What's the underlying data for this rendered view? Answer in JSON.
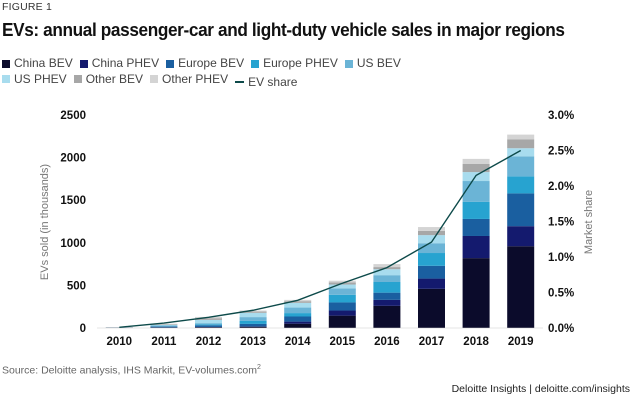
{
  "figure_label": "FIGURE 1",
  "title": "EVs: annual passenger-car and light-duty vehicle sales in major regions",
  "source": "Source: Deloitte analysis, IHS Markit, EV-volumes.com",
  "source_footnote": "2",
  "credit": "Deloitte Insights | deloitte.com/insights",
  "legend": [
    {
      "label": "China BEV",
      "color": "#0b0b2b",
      "kind": "box"
    },
    {
      "label": "China PHEV",
      "color": "#141a6e",
      "kind": "box"
    },
    {
      "label": "Europe BEV",
      "color": "#1a5fa0",
      "kind": "box"
    },
    {
      "label": "Europe PHEV",
      "color": "#27a3d0",
      "kind": "box"
    },
    {
      "label": "US BEV",
      "color": "#6bb4d6",
      "kind": "box"
    },
    {
      "label": "US PHEV",
      "color": "#a8dcee",
      "kind": "box"
    },
    {
      "label": "Other BEV",
      "color": "#a7a7a7",
      "kind": "box"
    },
    {
      "label": "Other PHEV",
      "color": "#d4d4d4",
      "kind": "box"
    },
    {
      "label": "EV share",
      "color": "#0d4a4a",
      "kind": "line"
    }
  ],
  "chart_data": {
    "type": "bar",
    "stacked": true,
    "title": "EVs: annual passenger-car and light-duty vehicle sales in major regions",
    "xlabel": "",
    "ylabel": "EVs sold (in thousands)",
    "y2label": "Market share",
    "ylim": [
      0,
      2500
    ],
    "y2lim": [
      0,
      3.0
    ],
    "yticks": [
      "0",
      "500",
      "1000",
      "1500",
      "2000",
      "2500"
    ],
    "y2ticks": [
      "0.0%",
      "0.5%",
      "1.0%",
      "1.5%",
      "2.0%",
      "2.5%",
      "3.0%"
    ],
    "grid": false,
    "legend_position": "top-left",
    "categories": [
      "2010",
      "2011",
      "2012",
      "2013",
      "2014",
      "2015",
      "2016",
      "2017",
      "2018",
      "2019"
    ],
    "series": [
      {
        "name": "China BEV",
        "color": "#0b0b2b",
        "values": [
          2,
          6,
          10,
          15,
          50,
          145,
          260,
          460,
          820,
          960
        ]
      },
      {
        "name": "China PHEV",
        "color": "#141a6e",
        "values": [
          0,
          1,
          2,
          3,
          25,
          60,
          70,
          120,
          260,
          235
        ]
      },
      {
        "name": "Europe BEV",
        "color": "#1a5fa0",
        "values": [
          2,
          10,
          20,
          30,
          60,
          95,
          85,
          150,
          200,
          385
        ]
      },
      {
        "name": "Europe PHEV",
        "color": "#27a3d0",
        "values": [
          0,
          2,
          10,
          35,
          40,
          90,
          125,
          150,
          200,
          200
        ]
      },
      {
        "name": "US BEV",
        "color": "#6bb4d6",
        "values": [
          1,
          10,
          15,
          45,
          65,
          75,
          80,
          115,
          245,
          235
        ]
      },
      {
        "name": "US PHEV",
        "color": "#a8dcee",
        "values": [
          1,
          8,
          38,
          50,
          55,
          45,
          70,
          95,
          105,
          95
        ]
      },
      {
        "name": "Other BEV",
        "color": "#a7a7a7",
        "values": [
          3,
          8,
          20,
          15,
          20,
          25,
          25,
          50,
          95,
          105
        ]
      },
      {
        "name": "Other PHEV",
        "color": "#d4d4d4",
        "values": [
          1,
          5,
          15,
          12,
          15,
          20,
          35,
          45,
          60,
          55
        ]
      }
    ],
    "line_series": {
      "name": "EV share",
      "color": "#0d4a4a",
      "axis": "right",
      "unit": "%",
      "values": [
        0.01,
        0.07,
        0.15,
        0.25,
        0.39,
        0.63,
        0.85,
        1.21,
        2.15,
        2.5
      ]
    }
  }
}
